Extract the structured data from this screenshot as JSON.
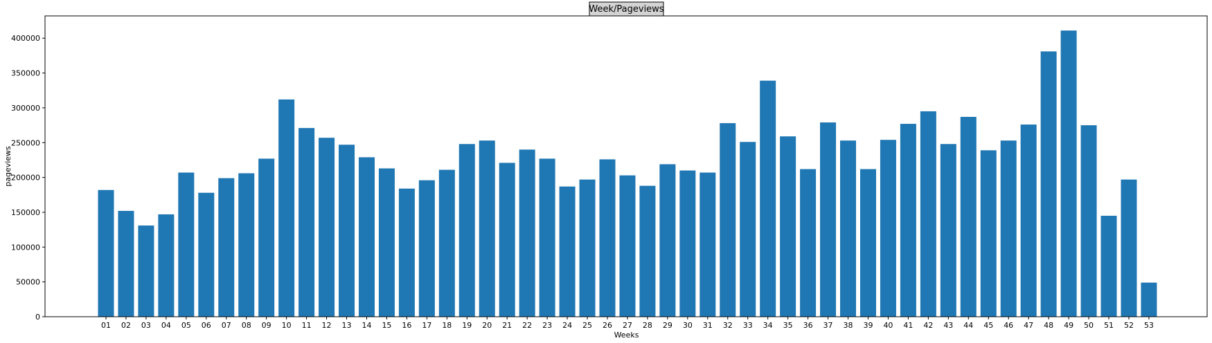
{
  "chart_data": {
    "type": "bar",
    "title": "Week/Pageviews",
    "xlabel": "Weeks",
    "ylabel": "pageviews",
    "ylim": [
      0,
      432000
    ],
    "yticks": [
      0,
      50000,
      100000,
      150000,
      200000,
      250000,
      300000,
      350000,
      400000
    ],
    "ytick_labels": [
      "0",
      "50000",
      "100000",
      "150000",
      "200000",
      "250000",
      "300000",
      "350000",
      "400000"
    ],
    "grid": false,
    "bar_color": "#1f77b4",
    "title_box_color": "#d3d3d3",
    "categories": [
      "01",
      "02",
      "03",
      "04",
      "05",
      "06",
      "07",
      "08",
      "09",
      "10",
      "11",
      "12",
      "13",
      "14",
      "15",
      "16",
      "17",
      "18",
      "19",
      "20",
      "21",
      "22",
      "23",
      "24",
      "25",
      "26",
      "27",
      "28",
      "29",
      "30",
      "31",
      "32",
      "33",
      "34",
      "35",
      "36",
      "37",
      "38",
      "39",
      "40",
      "41",
      "42",
      "43",
      "44",
      "45",
      "46",
      "47",
      "48",
      "49",
      "50",
      "51",
      "52",
      "53"
    ],
    "values": [
      182000,
      152000,
      131000,
      147000,
      207000,
      178000,
      199000,
      206000,
      227000,
      312000,
      271000,
      257000,
      247000,
      229000,
      213000,
      184000,
      196000,
      211000,
      248000,
      253000,
      221000,
      240000,
      227000,
      187000,
      197000,
      226000,
      203000,
      188000,
      219000,
      210000,
      207000,
      278000,
      251000,
      339000,
      259000,
      212000,
      279000,
      253000,
      212000,
      254000,
      277000,
      295000,
      248000,
      287000,
      239000,
      253000,
      276000,
      381000,
      411000,
      275000,
      145000,
      197000,
      49000
    ]
  }
}
